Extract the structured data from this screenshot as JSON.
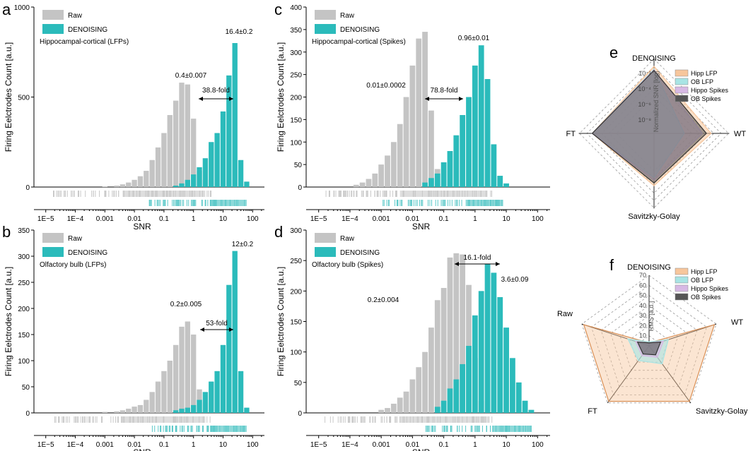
{
  "colors": {
    "raw": "#c4c4c4",
    "den": "#2bbbbb",
    "rawRug": "#c8c8c8",
    "denRug": "#5cc9c9",
    "hipp": "#f7c69c",
    "ob": "#a8e4e4",
    "hippo": "#d7b9e4",
    "obs": "#555555"
  },
  "chart_data": [
    {
      "id": "a",
      "type": "bar",
      "panel_letter": "a",
      "title": "Hippocampal-cortical (LFPs)",
      "ylabel": "Firing Eelctrodes Count [a.u.]",
      "xlabel": "SNR",
      "ylim": [
        0,
        1000
      ],
      "yticks": [
        "0",
        "500",
        "1000"
      ],
      "xticks": [
        "1E−5",
        "1E−4",
        "0.001",
        "0.01",
        "0.1",
        "1",
        "10",
        "100"
      ],
      "legend": [
        "Raw",
        "DENOISING"
      ],
      "raw_label": "0.4±0.007",
      "den_label": "16.4±0.2",
      "fold": "38.8-fold",
      "raw": [
        [
          -3,
          3
        ],
        [
          -2.6,
          8
        ],
        [
          -2.4,
          15
        ],
        [
          -2.2,
          25
        ],
        [
          -2,
          40
        ],
        [
          -1.8,
          60
        ],
        [
          -1.6,
          90
        ],
        [
          -1.4,
          150
        ],
        [
          -1.2,
          220
        ],
        [
          -1,
          300
        ],
        [
          -0.8,
          400
        ],
        [
          -0.6,
          480
        ],
        [
          -0.4,
          580
        ],
        [
          -0.2,
          570
        ],
        [
          0,
          380
        ],
        [
          0.2,
          90
        ],
        [
          0.4,
          40
        ]
      ],
      "den": [
        [
          -0.6,
          8
        ],
        [
          -0.4,
          20
        ],
        [
          -0.2,
          40
        ],
        [
          0,
          70
        ],
        [
          0.2,
          110
        ],
        [
          0.4,
          160
        ],
        [
          0.6,
          250
        ],
        [
          0.8,
          300
        ],
        [
          1,
          420
        ],
        [
          1.2,
          620
        ],
        [
          1.4,
          800
        ],
        [
          1.6,
          150
        ],
        [
          1.8,
          30
        ]
      ],
      "rug_raw": [
        -4.8,
        -3.8
      ],
      "rug_den": [
        -1.5,
        1.8
      ]
    },
    {
      "id": "b",
      "type": "bar",
      "panel_letter": "b",
      "title": "Olfactory bulb (LFPs)",
      "ylabel": "Firing Eelctrodes Count [a.u.]",
      "xlabel": "SNR",
      "ylim": [
        0,
        350
      ],
      "yticks": [
        "0",
        "50",
        "100",
        "150",
        "200",
        "250",
        "300",
        "350"
      ],
      "xticks": [
        "1E−5",
        "1E−4",
        "0.001",
        "0.01",
        "0.1",
        "1",
        "10",
        "100"
      ],
      "legend": [
        "Raw",
        "DENOISING"
      ],
      "raw_label": "0.2±0.005",
      "den_label": "12±0.2",
      "fold": "53-fold",
      "raw": [
        [
          -3,
          2
        ],
        [
          -2.6,
          3
        ],
        [
          -2.4,
          5
        ],
        [
          -2.2,
          8
        ],
        [
          -2,
          12
        ],
        [
          -1.8,
          15
        ],
        [
          -1.6,
          25
        ],
        [
          -1.4,
          40
        ],
        [
          -1.2,
          60
        ],
        [
          -1,
          80
        ],
        [
          -0.8,
          100
        ],
        [
          -0.6,
          130
        ],
        [
          -0.4,
          165
        ],
        [
          -0.2,
          175
        ],
        [
          0,
          150
        ],
        [
          0.2,
          45
        ],
        [
          0.4,
          20
        ]
      ],
      "den": [
        [
          -0.6,
          5
        ],
        [
          -0.4,
          8
        ],
        [
          -0.2,
          10
        ],
        [
          0,
          15
        ],
        [
          0.2,
          25
        ],
        [
          0.4,
          40
        ],
        [
          0.6,
          60
        ],
        [
          0.8,
          80
        ],
        [
          1,
          130
        ],
        [
          1.2,
          245
        ],
        [
          1.4,
          310
        ],
        [
          1.6,
          80
        ],
        [
          1.8,
          10
        ]
      ],
      "rug_raw": [
        -4.8,
        -3.8
      ],
      "rug_den": [
        -1.5,
        1.8
      ]
    },
    {
      "id": "c",
      "type": "bar",
      "panel_letter": "c",
      "title": "Hippocampal-cortical (Spikes)",
      "ylabel": "Firing Eelctrodes Count [a.u.]",
      "xlabel": "SNR",
      "ylim": [
        0,
        400
      ],
      "yticks": [
        "0",
        "50",
        "100",
        "150",
        "200",
        "250",
        "300",
        "350",
        "400"
      ],
      "xticks": [
        "1E−5",
        "1E−4",
        "0.001",
        "0.01",
        "0.1",
        "1",
        "10",
        "100"
      ],
      "legend": [
        "Raw",
        "DENOISING"
      ],
      "raw_label": "0.01±0.0002",
      "den_label": "0.96±0.01",
      "fold": "78.8-fold",
      "raw": [
        [
          -3.8,
          5
        ],
        [
          -3.6,
          10
        ],
        [
          -3.4,
          18
        ],
        [
          -3.2,
          30
        ],
        [
          -3,
          50
        ],
        [
          -2.8,
          70
        ],
        [
          -2.6,
          100
        ],
        [
          -2.4,
          140
        ],
        [
          -2.2,
          200
        ],
        [
          -2,
          270
        ],
        [
          -1.8,
          330
        ],
        [
          -1.6,
          345
        ],
        [
          -1.4,
          170
        ],
        [
          -1.2,
          40
        ]
      ],
      "den": [
        [
          -1.6,
          10
        ],
        [
          -1.4,
          20
        ],
        [
          -1.2,
          30
        ],
        [
          -1,
          55
        ],
        [
          -0.8,
          80
        ],
        [
          -0.6,
          115
        ],
        [
          -0.4,
          160
        ],
        [
          -0.2,
          200
        ],
        [
          0,
          270
        ],
        [
          0.2,
          315
        ],
        [
          0.4,
          240
        ],
        [
          0.6,
          95
        ],
        [
          0.8,
          25
        ],
        [
          1,
          8
        ]
      ],
      "rug_raw": [
        -4.8,
        -3.6
      ],
      "rug_den": [
        -3,
        0.9
      ]
    },
    {
      "id": "d",
      "type": "bar",
      "panel_letter": "d",
      "title": "Olfactory bulb (Spikes)",
      "ylabel": "Firing Eelctrodes Count [a.u.]",
      "xlabel": "SNR",
      "ylim": [
        0,
        300
      ],
      "yticks": [
        "0",
        "50",
        "100",
        "150",
        "200",
        "250",
        "300"
      ],
      "xticks": [
        "1E−5",
        "1E−4",
        "0.001",
        "0.01",
        "0.1",
        "1",
        "10",
        "100"
      ],
      "legend": [
        "Raw",
        "DENOISING"
      ],
      "raw_label": "0.2±0.004",
      "den_label": "3.6±0.09",
      "fold": "16.1-fold",
      "raw": [
        [
          -3,
          5
        ],
        [
          -2.8,
          8
        ],
        [
          -2.6,
          15
        ],
        [
          -2.4,
          25
        ],
        [
          -2.2,
          35
        ],
        [
          -2,
          55
        ],
        [
          -1.8,
          75
        ],
        [
          -1.6,
          100
        ],
        [
          -1.4,
          140
        ],
        [
          -1.2,
          185
        ],
        [
          -1,
          205
        ],
        [
          -0.8,
          255
        ],
        [
          -0.6,
          262
        ],
        [
          -0.4,
          260
        ],
        [
          -0.2,
          210
        ],
        [
          0,
          90
        ],
        [
          0.2,
          20
        ]
      ],
      "den": [
        [
          -1.2,
          10
        ],
        [
          -1,
          20
        ],
        [
          -0.8,
          40
        ],
        [
          -0.6,
          55
        ],
        [
          -0.4,
          80
        ],
        [
          -0.2,
          110
        ],
        [
          0,
          160
        ],
        [
          0.2,
          200
        ],
        [
          0.4,
          245
        ],
        [
          0.6,
          230
        ],
        [
          0.8,
          190
        ],
        [
          1,
          140
        ],
        [
          1.2,
          90
        ],
        [
          1.4,
          50
        ],
        [
          1.6,
          20
        ],
        [
          1.8,
          5
        ]
      ],
      "rug_raw": [
        -4.8,
        -3.8
      ],
      "rug_den": [
        -1.6,
        1.8
      ]
    },
    {
      "id": "e",
      "type": "radar",
      "panel_letter": "e",
      "axes": [
        "DENOISING",
        "WT",
        "Savitzky-Golay",
        "FT"
      ],
      "axis_label": "Normalized SNR [log]",
      "tick_labels": [
        "10⁻¹",
        "10⁻⁴",
        "10⁻⁶",
        "10⁻⁸"
      ],
      "legend": [
        "Hipp LFP",
        "OB LFP",
        "Hippo Spikes",
        "OB Spikes"
      ],
      "series": [
        {
          "name": "Hipp LFP",
          "values": [
            1.0,
            0.85,
            0.78,
            0.92
          ]
        },
        {
          "name": "OB LFP",
          "values": [
            0.96,
            0.45,
            0.66,
            0.92
          ]
        },
        {
          "name": "Hippo Spikes",
          "values": [
            0.95,
            0.72,
            0.7,
            0.92
          ]
        },
        {
          "name": "OB Spikes",
          "values": [
            0.94,
            0.78,
            0.74,
            0.92
          ]
        }
      ]
    },
    {
      "id": "f",
      "type": "radar",
      "panel_letter": "f",
      "axes": [
        "DENOISING",
        "WT",
        "Savitzky-Golay",
        "FT",
        "Raw"
      ],
      "axis_label": "RMS [a.u.]",
      "tick_labels": [
        "10",
        "20",
        "30",
        "40",
        "50",
        "60",
        "70"
      ],
      "max": 70,
      "legend": [
        "Hipp LFP",
        "OB LFP",
        "Hippo Spikes",
        "OB Spikes"
      ],
      "series": [
        {
          "name": "Hipp LFP",
          "values": [
            3,
            68,
            68,
            68,
            68
          ]
        },
        {
          "name": "OB LFP",
          "values": [
            4,
            20,
            22,
            18,
            22
          ]
        },
        {
          "name": "Hippo Spikes",
          "values": [
            3,
            15,
            14,
            12,
            14
          ]
        },
        {
          "name": "OB Spikes",
          "values": [
            3,
            12,
            11,
            10,
            12
          ]
        }
      ]
    }
  ]
}
